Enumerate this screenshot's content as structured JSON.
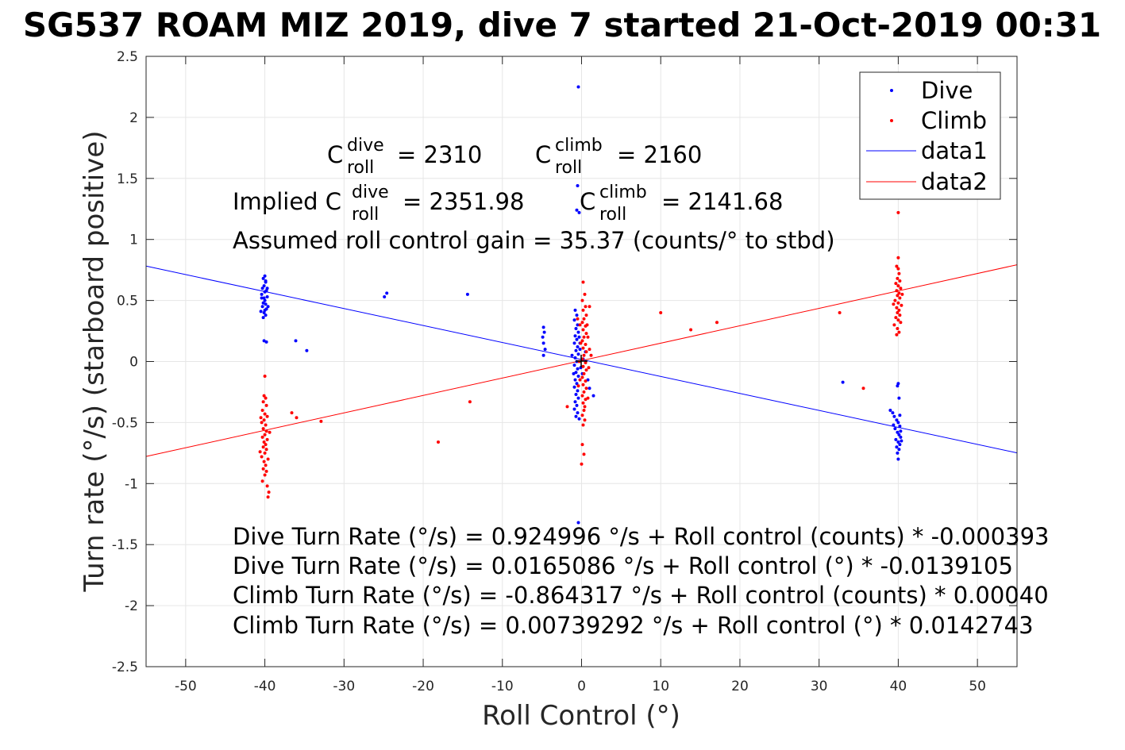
{
  "chart_data": {
    "type": "scatter",
    "title": "SG537 ROAM MIZ 2019, dive 7 started 21-Oct-2019 00:31",
    "xlabel": "Roll Control (°)",
    "ylabel": "Turn rate (°/s) (starboard positive)",
    "xlim": [
      -55,
      55
    ],
    "ylim": [
      -2.5,
      2.5
    ],
    "xticks": [
      -50,
      -40,
      -30,
      -20,
      -10,
      0,
      10,
      20,
      30,
      40,
      50
    ],
    "yticks": [
      -2.5,
      -2,
      -1.5,
      -1,
      -0.5,
      0,
      0.5,
      1,
      1.5,
      2,
      2.5
    ],
    "grid": true,
    "legend_placement": "top-right",
    "legend": [
      "Dive",
      "Climb",
      "data1",
      "data2"
    ],
    "annotations": {
      "c_roll_dive": {
        "prefix": "C",
        "sup": "dive",
        "sub": "roll",
        "value": "= 2310"
      },
      "c_roll_climb": {
        "prefix": "C",
        "sup": "climb",
        "sub": "roll",
        "value": "= 2160"
      },
      "implied_dive": {
        "prefix": "Implied C",
        "sup": "dive",
        "sub": "roll",
        "value": "= 2351.98"
      },
      "implied_climb": {
        "prefix": "C",
        "sup": "climb",
        "sub": "roll",
        "value": "= 2141.68"
      },
      "gain": "Assumed roll control gain = 35.37 (counts/° to stbd)",
      "eq_dive_counts": "Dive Turn Rate (°/s) = 0.924996 °/s + Roll control (counts) * -0.000393",
      "eq_dive_deg": "Dive Turn Rate (°/s) = 0.0165086 °/s + Roll control (°) * -0.0139105",
      "eq_climb_counts": "Climb Turn Rate (°/s) = -0.864317 °/s + Roll control (counts) * 0.00040",
      "eq_climb_deg": "Climb Turn Rate (°/s) = 0.00739292 °/s + Roll control (°) * 0.0142743"
    },
    "series": [
      {
        "name": "Dive",
        "kind": "points",
        "color": "#0000ff",
        "points": [
          [
            -40,
            0.7
          ],
          [
            -40.2,
            0.68
          ],
          [
            -39.9,
            0.65
          ],
          [
            -40.1,
            0.62
          ],
          [
            -40.3,
            0.6
          ],
          [
            -39.8,
            0.58
          ],
          [
            -40,
            0.57
          ],
          [
            -40.4,
            0.55
          ],
          [
            -39.7,
            0.53
          ],
          [
            -40.1,
            0.52
          ],
          [
            -40,
            0.5
          ],
          [
            -40.2,
            0.48
          ],
          [
            -39.9,
            0.47
          ],
          [
            -40.3,
            0.45
          ],
          [
            -39.8,
            0.43
          ],
          [
            -40,
            0.42
          ],
          [
            -40.1,
            0.4
          ],
          [
            -39.9,
            0.38
          ],
          [
            -40.2,
            0.36
          ],
          [
            -40.4,
            0.52
          ],
          [
            -39.7,
            0.6
          ],
          [
            -39.6,
            0.45
          ],
          [
            -40.5,
            0.41
          ],
          [
            -39.9,
            0.66
          ],
          [
            -40.1,
            0.17
          ],
          [
            -39.8,
            0.16
          ],
          [
            -36.1,
            0.17
          ],
          [
            -34.7,
            0.09
          ],
          [
            -24.6,
            0.56
          ],
          [
            -24.9,
            0.53
          ],
          [
            -14.4,
            0.55
          ],
          [
            -4.8,
            0.28
          ],
          [
            -4.7,
            0.24
          ],
          [
            -4.9,
            0.2
          ],
          [
            -4.8,
            0.15
          ],
          [
            -4.6,
            0.1
          ],
          [
            -4.8,
            0.05
          ],
          [
            -0.4,
            2.25
          ],
          [
            -0.5,
            1.44
          ],
          [
            -0.6,
            1.24
          ],
          [
            -0.3,
            1.22
          ],
          [
            -0.4,
            -1.32
          ],
          [
            -0.8,
            0.42
          ],
          [
            -0.6,
            0.38
          ],
          [
            -0.9,
            0.34
          ],
          [
            -0.5,
            0.3
          ],
          [
            -0.7,
            0.27
          ],
          [
            -0.4,
            0.24
          ],
          [
            -0.8,
            0.21
          ],
          [
            -0.6,
            0.18
          ],
          [
            -0.9,
            0.15
          ],
          [
            -0.5,
            0.12
          ],
          [
            -0.7,
            0.09
          ],
          [
            -0.4,
            0.06
          ],
          [
            -0.8,
            0.03
          ],
          [
            -0.6,
            0.0
          ],
          [
            -0.9,
            -0.03
          ],
          [
            -0.5,
            -0.06
          ],
          [
            -0.7,
            -0.09
          ],
          [
            -0.4,
            -0.12
          ],
          [
            -0.8,
            -0.15
          ],
          [
            -0.6,
            -0.18
          ],
          [
            -0.9,
            -0.21
          ],
          [
            -0.5,
            -0.24
          ],
          [
            -0.7,
            -0.27
          ],
          [
            -0.4,
            -0.3
          ],
          [
            -0.8,
            -0.33
          ],
          [
            -0.6,
            -0.36
          ],
          [
            -0.9,
            -0.39
          ],
          [
            -0.5,
            -0.42
          ],
          [
            -0.7,
            -0.45
          ],
          [
            -0.3,
            -0.47
          ],
          [
            -0.2,
            0.1
          ],
          [
            -0.1,
            -0.05
          ],
          [
            -0.2,
            0.15
          ],
          [
            0.1,
            -0.1
          ],
          [
            -0.3,
            0.2
          ],
          [
            0.2,
            0.02
          ],
          [
            0.5,
            0.08
          ],
          [
            0.8,
            -0.15
          ],
          [
            1.0,
            -0.22
          ],
          [
            1.5,
            -0.28
          ],
          [
            -1.2,
            0.05
          ],
          [
            -1.0,
            -0.1
          ],
          [
            33.0,
            -0.17
          ],
          [
            39.0,
            -0.4
          ],
          [
            39.3,
            -0.42
          ],
          [
            39.5,
            -0.45
          ],
          [
            39.8,
            -0.48
          ],
          [
            40.0,
            -0.5
          ],
          [
            40.2,
            -0.53
          ],
          [
            39.6,
            -0.55
          ],
          [
            39.9,
            -0.58
          ],
          [
            40.1,
            -0.6
          ],
          [
            40.3,
            -0.62
          ],
          [
            39.7,
            -0.64
          ],
          [
            40.0,
            -0.66
          ],
          [
            40.2,
            -0.68
          ],
          [
            39.8,
            -0.7
          ],
          [
            40.1,
            -0.72
          ],
          [
            39.9,
            -0.75
          ],
          [
            40.0,
            -0.8
          ],
          [
            40.3,
            -0.57
          ],
          [
            39.4,
            -0.52
          ],
          [
            40.4,
            -0.65
          ],
          [
            40.0,
            -0.18
          ],
          [
            40.1,
            -0.3
          ],
          [
            39.9,
            -0.2
          ],
          [
            40.2,
            -0.44
          ]
        ]
      },
      {
        "name": "Climb",
        "kind": "points",
        "color": "#ff0000",
        "points": [
          [
            -40,
            -0.12
          ],
          [
            -40.1,
            -0.28
          ],
          [
            -39.9,
            -0.3
          ],
          [
            -40.2,
            -0.33
          ],
          [
            -39.8,
            -0.36
          ],
          [
            -40.3,
            -0.4
          ],
          [
            -40,
            -0.43
          ],
          [
            -39.7,
            -0.45
          ],
          [
            -40.1,
            -0.48
          ],
          [
            -40.4,
            -0.5
          ],
          [
            -39.9,
            -0.52
          ],
          [
            -40.2,
            -0.55
          ],
          [
            -39.8,
            -0.57
          ],
          [
            -40,
            -0.6
          ],
          [
            -40.3,
            -0.62
          ],
          [
            -39.7,
            -0.64
          ],
          [
            -40.1,
            -0.66
          ],
          [
            -39.9,
            -0.68
          ],
          [
            -40.2,
            -0.7
          ],
          [
            -39.8,
            -0.72
          ],
          [
            -40,
            -0.75
          ],
          [
            -40.4,
            -0.78
          ],
          [
            -39.6,
            -0.8
          ],
          [
            -40.1,
            -0.82
          ],
          [
            -39.9,
            -0.85
          ],
          [
            -40.2,
            -0.88
          ],
          [
            -39.8,
            -0.9
          ],
          [
            -40,
            -0.93
          ],
          [
            -40.3,
            -0.98
          ],
          [
            -39.7,
            -1.02
          ],
          [
            -39.5,
            -1.07
          ],
          [
            -39.6,
            -1.11
          ],
          [
            -40.5,
            -0.46
          ],
          [
            -39.4,
            -0.58
          ],
          [
            -40.6,
            -0.74
          ],
          [
            -36.6,
            -0.42
          ],
          [
            -36.0,
            -0.46
          ],
          [
            -32.9,
            -0.49
          ],
          [
            -18.1,
            -0.66
          ],
          [
            -14.1,
            -0.33
          ],
          [
            0.2,
            0.65
          ],
          [
            0.4,
            0.55
          ],
          [
            0.1,
            0.5
          ],
          [
            0.5,
            0.45
          ],
          [
            0.2,
            0.42
          ],
          [
            0.6,
            0.38
          ],
          [
            0.3,
            0.35
          ],
          [
            0.1,
            0.32
          ],
          [
            0.5,
            0.29
          ],
          [
            0.2,
            0.26
          ],
          [
            0.6,
            0.23
          ],
          [
            0.3,
            0.2
          ],
          [
            0.1,
            0.17
          ],
          [
            0.5,
            0.14
          ],
          [
            0.2,
            0.11
          ],
          [
            0.6,
            0.08
          ],
          [
            0.3,
            0.05
          ],
          [
            0.1,
            0.02
          ],
          [
            0.5,
            -0.01
          ],
          [
            0.2,
            -0.04
          ],
          [
            0.6,
            -0.07
          ],
          [
            0.3,
            -0.1
          ],
          [
            0.1,
            -0.13
          ],
          [
            0.5,
            -0.16
          ],
          [
            0.2,
            -0.19
          ],
          [
            0.6,
            -0.22
          ],
          [
            0.3,
            -0.25
          ],
          [
            0.1,
            -0.28
          ],
          [
            0.5,
            -0.31
          ],
          [
            0.2,
            -0.34
          ],
          [
            0.4,
            -0.37
          ],
          [
            0.3,
            -0.4
          ],
          [
            0.1,
            -0.44
          ],
          [
            0.4,
            -0.48
          ],
          [
            0.2,
            -0.52
          ],
          [
            0.1,
            -0.68
          ],
          [
            0.3,
            -0.76
          ],
          [
            0.0,
            -0.84
          ],
          [
            -0.2,
            0.3
          ],
          [
            -0.1,
            0.15
          ],
          [
            -0.3,
            0.0
          ],
          [
            -0.2,
            -0.15
          ],
          [
            0.8,
            0.2
          ],
          [
            1.0,
            0.1
          ],
          [
            0.9,
            -0.05
          ],
          [
            1.2,
            0.05
          ],
          [
            0.7,
            0.3
          ],
          [
            0.8,
            -0.3
          ],
          [
            1.0,
            0.45
          ],
          [
            -1.8,
            -0.37
          ],
          [
            -0.5,
            0.35
          ],
          [
            -0.4,
            -0.2
          ],
          [
            10.0,
            0.4
          ],
          [
            13.8,
            0.26
          ],
          [
            17.1,
            0.32
          ],
          [
            32.6,
            0.4
          ],
          [
            35.6,
            -0.22
          ],
          [
            40,
            1.22
          ],
          [
            40,
            0.85
          ],
          [
            39.8,
            0.78
          ],
          [
            40.1,
            0.72
          ],
          [
            39.9,
            0.68
          ],
          [
            40.2,
            0.66
          ],
          [
            39.7,
            0.64
          ],
          [
            40,
            0.62
          ],
          [
            40.3,
            0.6
          ],
          [
            39.8,
            0.58
          ],
          [
            40.1,
            0.56
          ],
          [
            39.9,
            0.54
          ],
          [
            40.2,
            0.52
          ],
          [
            39.6,
            0.5
          ],
          [
            40,
            0.48
          ],
          [
            40.4,
            0.46
          ],
          [
            39.8,
            0.44
          ],
          [
            40.1,
            0.42
          ],
          [
            39.9,
            0.4
          ],
          [
            40.2,
            0.38
          ],
          [
            39.7,
            0.36
          ],
          [
            40,
            0.34
          ],
          [
            40.3,
            0.32
          ],
          [
            39.5,
            0.3
          ],
          [
            39.9,
            0.27
          ],
          [
            40.1,
            0.24
          ],
          [
            39.8,
            0.22
          ],
          [
            40.5,
            0.55
          ],
          [
            39.4,
            0.47
          ],
          [
            40,
            0.76
          ]
        ]
      },
      {
        "name": "data1",
        "kind": "line",
        "color": "#0000ff",
        "intercept": 0.0165086,
        "slope": -0.0139105
      },
      {
        "name": "data2",
        "kind": "line",
        "color": "#ff0000",
        "intercept": 0.00739292,
        "slope": 0.0142743
      }
    ]
  }
}
